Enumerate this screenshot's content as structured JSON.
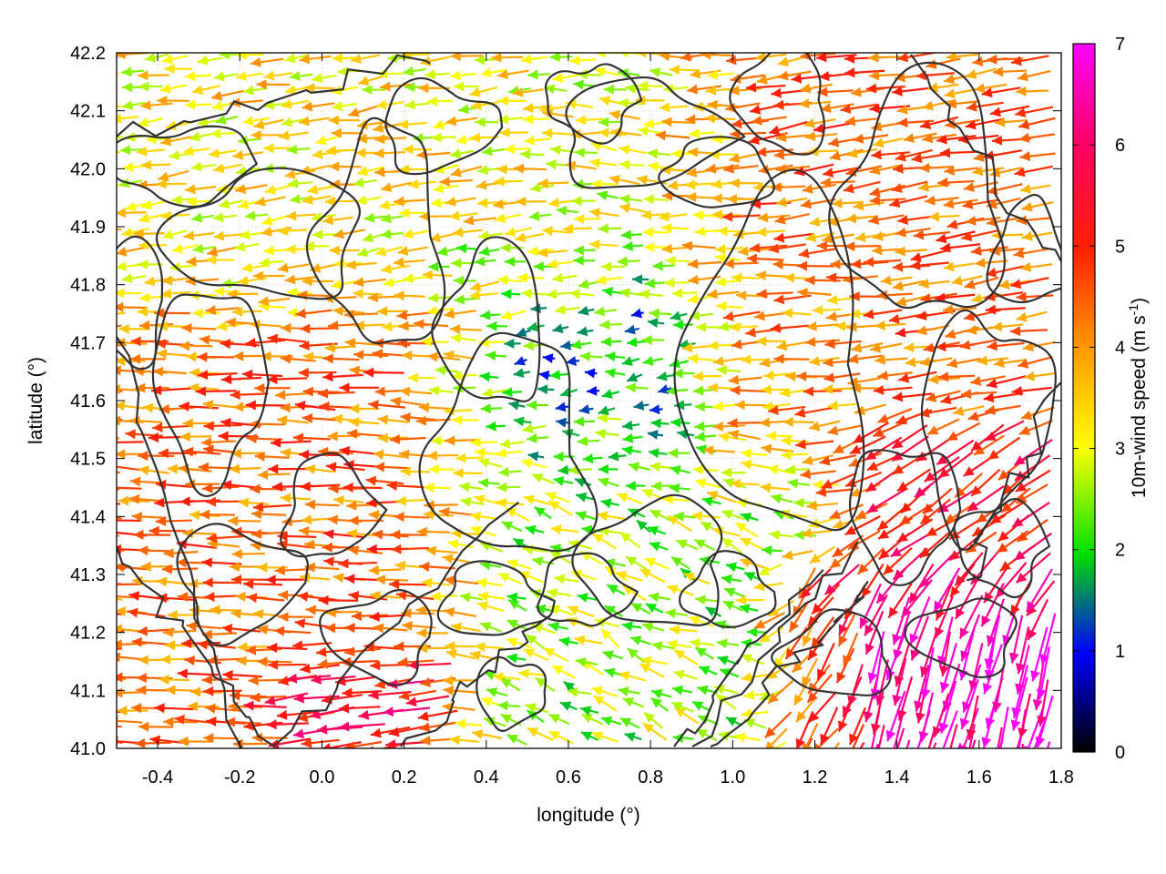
{
  "chart_data": {
    "type": "vector-field",
    "xlabel": "longitude (°)",
    "ylabel": "latitude (°)",
    "xlim": [
      -0.5,
      1.8
    ],
    "ylim": [
      41.0,
      42.2
    ],
    "xticks": [
      "-0.4",
      "-0.2",
      "0.0",
      "0.2",
      "0.4",
      "0.6",
      "0.8",
      "1.0",
      "1.2",
      "1.4",
      "1.6",
      "1.8"
    ],
    "xtick_values": [
      -0.4,
      -0.2,
      0.0,
      0.2,
      0.4,
      0.6,
      0.8,
      1.0,
      1.2,
      1.4,
      1.6,
      1.8
    ],
    "yticks": [
      "41.0",
      "41.1",
      "41.2",
      "41.3",
      "41.4",
      "41.5",
      "41.6",
      "41.7",
      "41.8",
      "41.9",
      "42.0",
      "42.1",
      "42.2"
    ],
    "ytick_values": [
      41.0,
      41.1,
      41.2,
      41.3,
      41.4,
      41.5,
      41.6,
      41.7,
      41.8,
      41.9,
      42.0,
      42.1,
      42.2
    ],
    "grid": true,
    "colorbar": {
      "label_main": "10m-wind speed (m s",
      "label_sup": "-1",
      "label_end": ")",
      "range": [
        0,
        7
      ],
      "ticks": [
        "0",
        "1",
        "2",
        "3",
        "4",
        "5",
        "6",
        "7"
      ],
      "tick_values": [
        0,
        1,
        2,
        3,
        4,
        5,
        6,
        7
      ],
      "palette": [
        "#000000",
        "#0000ff",
        "#00ee00",
        "#ffff00",
        "#ff9900",
        "#ff0000",
        "#ff00ff"
      ]
    },
    "wind_regions": [
      {
        "lon": [
          -0.5,
          0.35
        ],
        "lat": [
          41.0,
          41.75
        ],
        "u": -4.6,
        "v": 0.15,
        "speed": 4.4
      },
      {
        "lon": [
          -0.5,
          0.6
        ],
        "lat": [
          41.75,
          42.2
        ],
        "u": -3.2,
        "v": -0.4,
        "speed": 3.3
      },
      {
        "lon": [
          0.35,
          0.95
        ],
        "lat": [
          41.45,
          41.85
        ],
        "u": -2.2,
        "v": 0.05,
        "speed": 2.3
      },
      {
        "lon": [
          0.55,
          0.95
        ],
        "lat": [
          41.6,
          41.75
        ],
        "u": -1.0,
        "v": -0.3,
        "speed": 1.2
      },
      {
        "lon": [
          0.4,
          1.25
        ],
        "lat": [
          41.0,
          41.45
        ],
        "u": -1.6,
        "v": 0.6,
        "speed": 2.6
      },
      {
        "lon": [
          0.95,
          1.75
        ],
        "lat": [
          41.6,
          42.2
        ],
        "u": -4.2,
        "v": -0.6,
        "speed": 4.4
      },
      {
        "lon": [
          0.6,
          1.0
        ],
        "lat": [
          41.85,
          42.2
        ],
        "u": -2.8,
        "v": 0.3,
        "speed": 3.0
      },
      {
        "lon": [
          1.2,
          1.8
        ],
        "lat": [
          41.0,
          41.3
        ],
        "u": -1.4,
        "v": -5.2,
        "speed": 6.6
      },
      {
        "lon": [
          1.3,
          1.8
        ],
        "lat": [
          41.3,
          41.55
        ],
        "u": -3.5,
        "v": -2.5,
        "speed": 5.2
      },
      {
        "lon": [
          1.0,
          1.3
        ],
        "lat": [
          41.45,
          41.85
        ],
        "u": -3.6,
        "v": 0.3,
        "speed": 3.7
      },
      {
        "lon": [
          0.0,
          0.3
        ],
        "lat": [
          41.0,
          41.12
        ],
        "u": -5.5,
        "v": -1.5,
        "speed": 6.5
      }
    ]
  }
}
